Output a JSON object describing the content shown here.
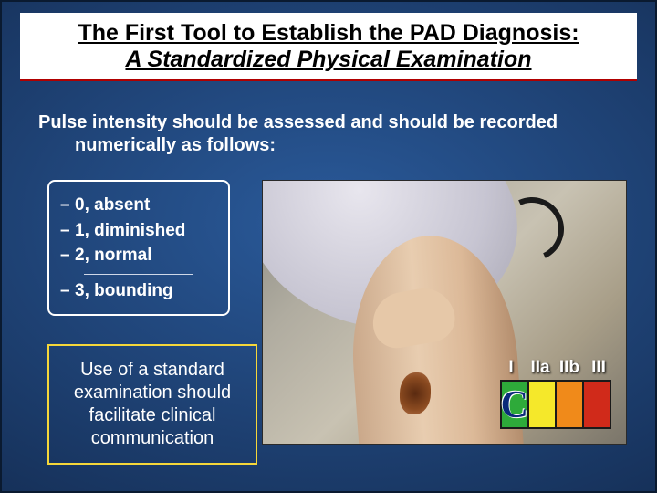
{
  "title": {
    "line1": "The First Tool to Establish the PAD Diagnosis:",
    "line2": "A Standardized Physical Examination"
  },
  "intro": {
    "line1": "Pulse intensity should be assessed and should be recorded",
    "line2": "numerically as follows:"
  },
  "pulse_scale": {
    "items": [
      "0, absent",
      "1, diminished",
      "2, normal",
      "3, bounding"
    ]
  },
  "callout": {
    "text_lines": [
      "Use of a standard",
      "examination should",
      "facilitate clinical",
      "communication"
    ]
  },
  "evidence_grade": {
    "labels": [
      "I",
      "IIa",
      "IIb",
      "III"
    ],
    "colors": [
      "#2eaa3a",
      "#f5e82a",
      "#f08a1a",
      "#d02a1a"
    ],
    "selected_letter": "C"
  },
  "style": {
    "slide_bg_inner": "#2a5a9a",
    "slide_bg_outer": "#0d1f3d",
    "title_bg": "#ffffff",
    "title_underline": "#b00000",
    "text_color": "#ffffff",
    "callout_border": "#f5d73a",
    "pulse_border": "#ffffff"
  }
}
